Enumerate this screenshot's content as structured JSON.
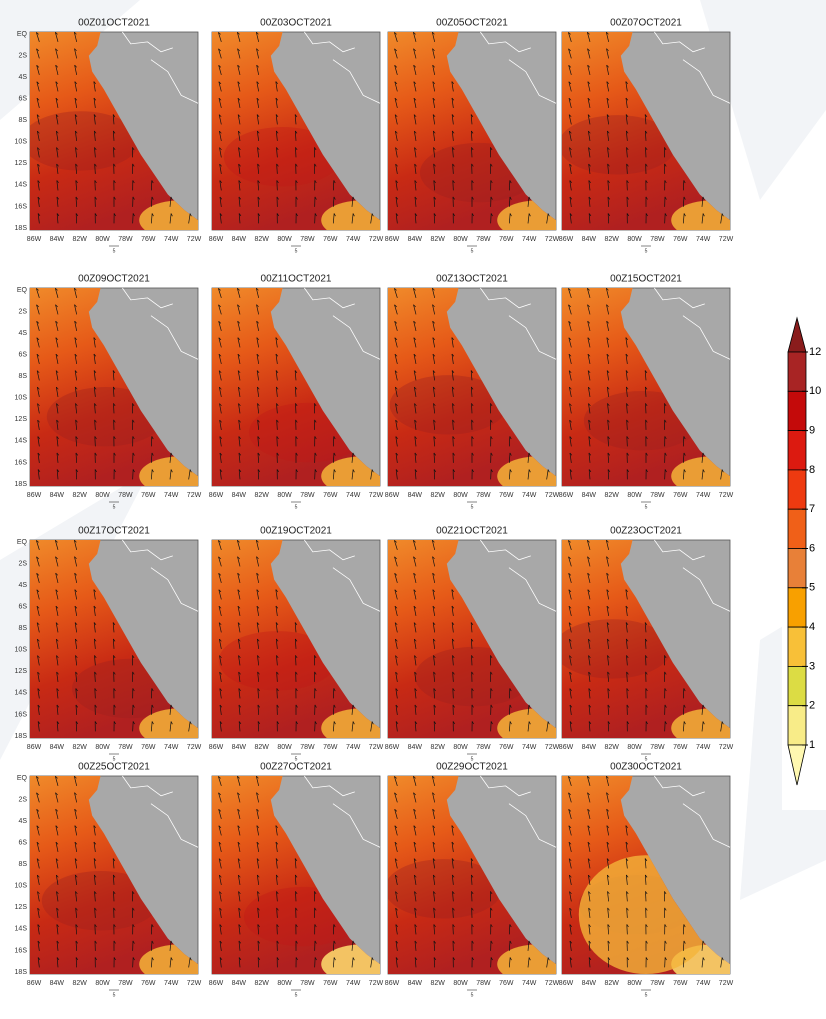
{
  "panels": [
    {
      "title": "00Z01OCT2021"
    },
    {
      "title": "00Z03OCT2021"
    },
    {
      "title": "00Z05OCT2021"
    },
    {
      "title": "00Z07OCT2021"
    },
    {
      "title": "00Z09OCT2021"
    },
    {
      "title": "00Z11OCT2021"
    },
    {
      "title": "00Z13OCT2021"
    },
    {
      "title": "00Z15OCT2021"
    },
    {
      "title": "00Z17OCT2021"
    },
    {
      "title": "00Z19OCT2021"
    },
    {
      "title": "00Z21OCT2021"
    },
    {
      "title": "00Z23OCT2021"
    },
    {
      "title": "00Z25OCT2021"
    },
    {
      "title": "00Z27OCT2021"
    },
    {
      "title": "00Z29OCT2021"
    },
    {
      "title": "00Z30OCT2021"
    }
  ],
  "x_labels": [
    "86W",
    "84W",
    "82W",
    "80W",
    "78W",
    "76W",
    "74W",
    "72W"
  ],
  "y_labels": [
    "EQ",
    "2S",
    "4S",
    "6S",
    "8S",
    "10S",
    "12S",
    "14S",
    "16S",
    "18S"
  ],
  "vector_reference": 5,
  "colorbar": {
    "ticks": [
      12,
      10,
      9,
      8,
      7,
      6,
      5,
      4,
      3,
      2,
      1
    ],
    "colors": [
      "#8a1c1c",
      "#a82424",
      "#c40a0a",
      "#dc1a10",
      "#ee3a10",
      "#f06018",
      "#e88038",
      "#f8a000",
      "#f8c038",
      "#dcdc44",
      "#f8ec88",
      "#fff8b0"
    ]
  }
}
